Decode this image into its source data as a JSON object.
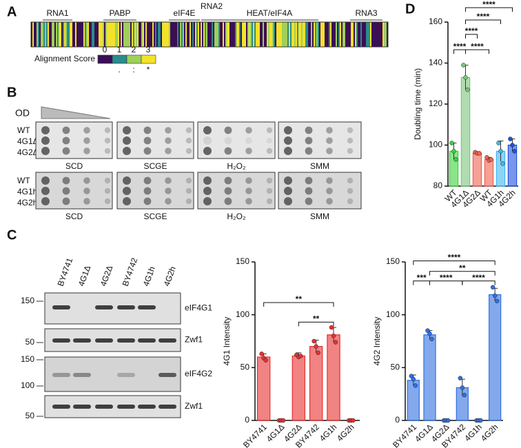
{
  "panels": {
    "A": {
      "label": "A",
      "domains": [
        "RNA1",
        "PABP",
        "eIF4E",
        "RNA2",
        "HEAT/eIF4A",
        "RNA3"
      ],
      "legend_title": "Alignment Score",
      "scores": [
        0,
        1,
        2,
        3
      ],
      "symbols": [
        ".",
        ":",
        "*"
      ],
      "colors": [
        "#3b0f55",
        "#2a8c8c",
        "#9ed05a",
        "#f4e22a"
      ]
    },
    "B": {
      "label": "B",
      "od": "OD",
      "rows_top": [
        "WT",
        "4G1Δ",
        "4G2Δ"
      ],
      "rows_bottom": [
        "WT",
        "4G1h",
        "4G2h"
      ],
      "conditions_top": [
        "SCD",
        "SCGE",
        "H₂O₂",
        "SMM"
      ],
      "conditions_bottom": [
        "SCD",
        "SCGE",
        "H₂O₂",
        "SMM"
      ]
    },
    "C": {
      "label": "C",
      "lanes": [
        "BY4741",
        "4G1Δ",
        "4G2Δ",
        "BY4742",
        "4G1h",
        "4G2h"
      ],
      "markers": [
        150,
        50,
        150,
        100,
        50
      ],
      "blots": [
        "eIF4G1",
        "Zwf1",
        "eIF4G2",
        "Zwf1"
      ]
    },
    "D": {
      "label": "D"
    }
  },
  "chart_data": [
    {
      "type": "bar",
      "ylabel": "Doubling time (min)",
      "categories": [
        "WT",
        "4G1Δ",
        "4G2Δ",
        "WT",
        "4G1h",
        "4G2h"
      ],
      "values": [
        97,
        133,
        96,
        93,
        97,
        100
      ],
      "errors": [
        4,
        6,
        0.5,
        1,
        5,
        3
      ],
      "points": [
        [
          101,
          97,
          93
        ],
        [
          139,
          133,
          127
        ],
        [
          96.5,
          96,
          96
        ],
        [
          94,
          92.5,
          93
        ],
        [
          101,
          97,
          91
        ],
        [
          103,
          100,
          97
        ]
      ],
      "colors": [
        "#3cd23c",
        "#7cc47c",
        "#f06050",
        "#f06050",
        "#40b8f0",
        "#2050e0"
      ],
      "ylim": [
        80,
        160
      ],
      "yticks": [
        80,
        100,
        120,
        140,
        160
      ],
      "brackets": [
        {
          "from": 1,
          "to": 5,
          "y": 167,
          "label": "****"
        },
        {
          "from": 1,
          "to": 4,
          "y": 161,
          "label": "****"
        },
        {
          "from": 1,
          "to": 2,
          "y": 154,
          "label": "****"
        },
        {
          "from": 0,
          "to": 1,
          "y": 146.5,
          "label": "****"
        },
        {
          "from": 1,
          "to": 3,
          "y": 146.5,
          "label": "****"
        }
      ]
    },
    {
      "type": "bar",
      "ylabel": "4G1 Intensity",
      "categories": [
        "BY4741",
        "4G1Δ",
        "4G2Δ",
        "BY4742",
        "4G1h",
        "4G2h"
      ],
      "values": [
        60,
        0,
        61,
        70,
        81,
        0
      ],
      "errors": [
        3,
        0,
        3,
        6,
        7,
        0
      ],
      "points": [
        [
          63,
          59,
          57
        ],
        [
          0,
          0,
          0
        ],
        [
          62,
          60,
          61
        ],
        [
          75,
          70,
          64
        ],
        [
          88,
          80,
          74
        ],
        [
          0,
          0,
          0
        ]
      ],
      "color": "#e83030",
      "ylim": [
        0,
        150
      ],
      "yticks": [
        0,
        50,
        100,
        150
      ],
      "brackets": [
        {
          "from": 0,
          "to": 4,
          "y": 111.5,
          "label": "**"
        },
        {
          "from": 2,
          "to": 4,
          "y": 93,
          "label": "**"
        }
      ]
    },
    {
      "type": "bar",
      "ylabel": "4G2 Intensity",
      "categories": [
        "BY4741",
        "4G1Δ",
        "4G2Δ",
        "BY4742",
        "4G1h",
        "4G2h"
      ],
      "values": [
        38,
        81,
        0,
        31,
        0,
        119
      ],
      "errors": [
        5,
        4,
        0,
        8,
        0,
        6
      ],
      "points": [
        [
          42,
          39,
          33
        ],
        [
          85,
          82,
          77
        ],
        [
          0,
          0,
          0
        ],
        [
          40,
          31,
          24
        ],
        [
          0,
          0,
          0
        ],
        [
          126,
          118,
          113
        ]
      ],
      "color": "#3070e0",
      "ylim": [
        0,
        150
      ],
      "yticks": [
        0,
        50,
        100,
        150
      ],
      "brackets": [
        {
          "from": 0,
          "to": 5,
          "y": 151,
          "label": "****"
        },
        {
          "from": 1,
          "to": 5,
          "y": 141,
          "label": "**"
        },
        {
          "from": 0,
          "to": 1,
          "y": 132,
          "label": "***"
        },
        {
          "from": 1,
          "to": 3,
          "y": 132,
          "label": "****"
        },
        {
          "from": 3,
          "to": 5,
          "y": 132,
          "label": "****"
        }
      ]
    }
  ]
}
